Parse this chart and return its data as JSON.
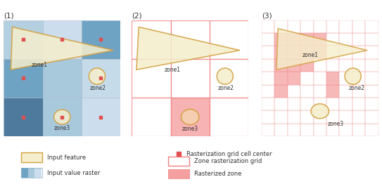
{
  "fig_width": 5.43,
  "fig_height": 2.62,
  "dpi": 100,
  "bg_color": "#ffffff",
  "panel_labels": [
    "(1)",
    "(2)",
    "(3)"
  ],
  "raster_colors_p1": [
    [
      "#b8d0e3",
      "#d0e4f0",
      "#7aaac8"
    ],
    [
      "#7aaac8",
      "#a8c8dc",
      "#c8dcea"
    ],
    [
      "#5a7a9a",
      "#a8c8dc",
      "#d0e4f0"
    ]
  ],
  "zone_outline_color": "#d4a040",
  "zone_fill_color": "#f5eecc",
  "raster_zone_color": "#f5a0a0",
  "grid_color": "#f08080",
  "red_dot_color": "#e05050"
}
